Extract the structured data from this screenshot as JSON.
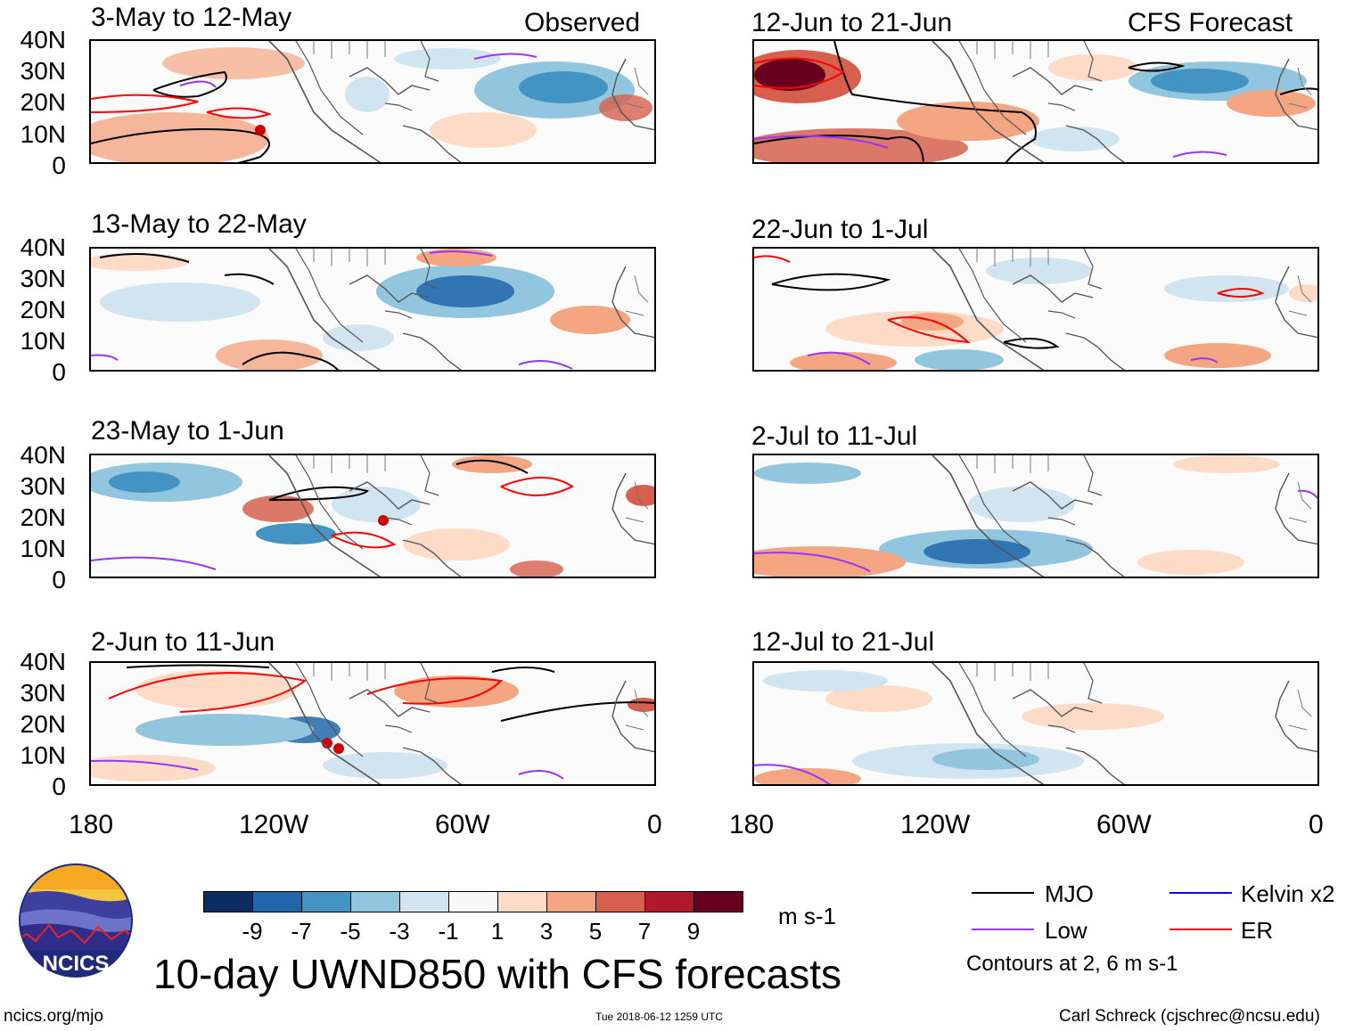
{
  "header": {
    "observed_label": "Observed",
    "forecast_label": "CFS Forecast"
  },
  "panels_left": [
    {
      "title": "3-May to 12-May"
    },
    {
      "title": "13-May to 22-May"
    },
    {
      "title": "23-May to 1-Jun"
    },
    {
      "title": "2-Jun to 11-Jun"
    }
  ],
  "panels_right": [
    {
      "title": "12-Jun to 21-Jun"
    },
    {
      "title": "22-Jun to 1-Jul"
    },
    {
      "title": "2-Jul to 11-Jul"
    },
    {
      "title": "12-Jul to 21-Jul"
    }
  ],
  "lat_labels": [
    "40N",
    "30N",
    "20N",
    "10N",
    "0"
  ],
  "lon_labels": [
    "180",
    "120W",
    "60W",
    "0"
  ],
  "colorbar": {
    "units": "m s-1",
    "ticks": [
      "-9",
      "-7",
      "-5",
      "-3",
      "-1",
      "1",
      "3",
      "5",
      "7",
      "9"
    ],
    "colors": [
      "#0a2c61",
      "#2166ac",
      "#4393c3",
      "#92c5de",
      "#d1e5f0",
      "#f7f7f7",
      "#fddbc7",
      "#f4a582",
      "#d6604d",
      "#b2182b",
      "#67001f"
    ]
  },
  "legend": {
    "items": [
      {
        "label": "MJO",
        "color": "#000000"
      },
      {
        "label": "Kelvin x2",
        "color": "#0000ff"
      },
      {
        "label": "Low",
        "color": "#9933ff"
      },
      {
        "label": "ER",
        "color": "#ff0000"
      }
    ],
    "note": "Contours at 2, 6 m s-1"
  },
  "logo": {
    "text": "NCICS"
  },
  "main_title": "10-day UWND850 with CFS forecasts",
  "footer": {
    "url": "ncics.org/mjo",
    "timestamp": "Tue 2018-06-12 1259 UTC",
    "credit": "Carl Schreck (cjschrec@ncsu.edu)"
  }
}
